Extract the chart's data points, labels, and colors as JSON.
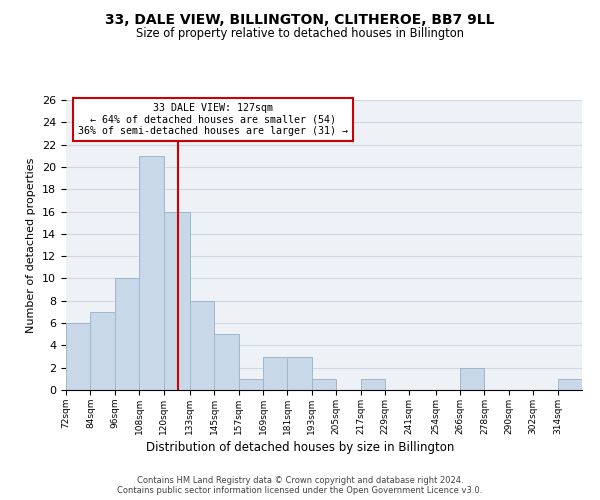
{
  "title": "33, DALE VIEW, BILLINGTON, CLITHEROE, BB7 9LL",
  "subtitle": "Size of property relative to detached houses in Billington",
  "xlabel": "Distribution of detached houses by size in Billington",
  "ylabel": "Number of detached properties",
  "bin_labels": [
    "72sqm",
    "84sqm",
    "96sqm",
    "108sqm",
    "120sqm",
    "133sqm",
    "145sqm",
    "157sqm",
    "169sqm",
    "181sqm",
    "193sqm",
    "205sqm",
    "217sqm",
    "229sqm",
    "241sqm",
    "254sqm",
    "266sqm",
    "278sqm",
    "290sqm",
    "302sqm",
    "314sqm"
  ],
  "bin_edges": [
    72,
    84,
    96,
    108,
    120,
    133,
    145,
    157,
    169,
    181,
    193,
    205,
    217,
    229,
    241,
    254,
    266,
    278,
    290,
    302,
    314,
    326
  ],
  "counts": [
    6,
    7,
    10,
    21,
    16,
    8,
    5,
    1,
    3,
    3,
    1,
    0,
    1,
    0,
    0,
    0,
    2,
    0,
    0,
    0,
    1
  ],
  "property_size": 127,
  "bar_facecolor": "#c8d8e8",
  "bar_edgecolor": "#a0b8cc",
  "vline_color": "#cc0000",
  "annotation_box_edgecolor": "#cc0000",
  "annotation_line1": "33 DALE VIEW: 127sqm",
  "annotation_line2": "← 64% of detached houses are smaller (54)",
  "annotation_line3": "36% of semi-detached houses are larger (31) →",
  "ylim": [
    0,
    26
  ],
  "yticks": [
    0,
    2,
    4,
    6,
    8,
    10,
    12,
    14,
    16,
    18,
    20,
    22,
    24,
    26
  ],
  "footer_line1": "Contains HM Land Registry data © Crown copyright and database right 2024.",
  "footer_line2": "Contains public sector information licensed under the Open Government Licence v3.0.",
  "grid_color": "#d0d8e0",
  "background_color": "#eef2f6"
}
